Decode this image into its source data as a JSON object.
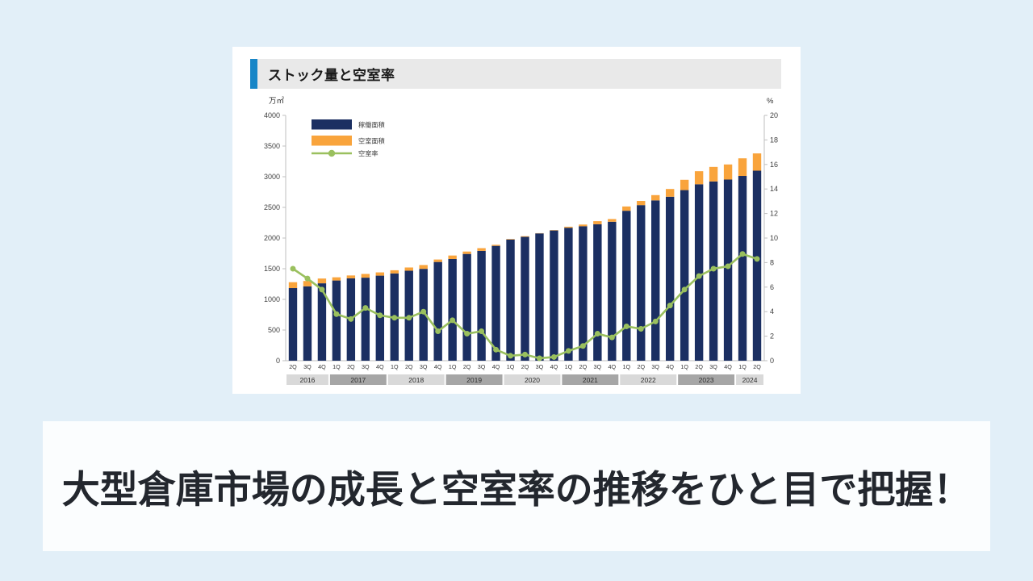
{
  "page": {
    "caption": "大型倉庫市場の成長と空室率の推移をひと目で把握！"
  },
  "card": {
    "title": "ストック量と空室率"
  },
  "colors": {
    "page_bg": "#e2eff8",
    "card_bg": "#ffffff",
    "header_strip": "#e9e9e9",
    "accent_blue": "#1886c7",
    "caption_band_bg": "#fbfdfe",
    "caption_text": "#23272e",
    "bar_operating": "#1b2f62",
    "bar_vacant": "#f9a43c",
    "line_vacancy": "#9ac05e",
    "axis": "#bfbfbf",
    "tick_text": "#3f3f3f",
    "year_band_light": "#d9d9d9",
    "year_band_dark": "#a6a6a6",
    "year_text": "#2e2e2e"
  },
  "chart_data": {
    "type": "bar",
    "subtype": "stacked-bar-with-line",
    "title": "ストック量と空室率",
    "left_axis": {
      "unit": "万㎡",
      "min": 0,
      "max": 4000,
      "ticks": [
        0,
        500,
        1000,
        1500,
        2000,
        2500,
        3000,
        3500,
        4000
      ]
    },
    "right_axis": {
      "unit": "%",
      "min": 0,
      "max": 20,
      "ticks": [
        0,
        2,
        4,
        6,
        8,
        10,
        12,
        14,
        16,
        18,
        20
      ]
    },
    "legend": [
      {
        "label": "稼働面積",
        "type": "bar",
        "color": "#1b2f62"
      },
      {
        "label": "空室面積",
        "type": "bar",
        "color": "#f9a43c"
      },
      {
        "label": "空室率",
        "type": "line",
        "color": "#9ac05e"
      }
    ],
    "quarter_labels": [
      "2Q",
      "3Q",
      "4Q",
      "1Q",
      "2Q",
      "3Q",
      "4Q",
      "1Q",
      "2Q",
      "3Q",
      "4Q",
      "1Q",
      "2Q",
      "3Q",
      "4Q",
      "1Q",
      "2Q",
      "3Q",
      "4Q",
      "1Q",
      "2Q",
      "3Q",
      "4Q",
      "1Q",
      "2Q",
      "3Q",
      "4Q",
      "1Q",
      "2Q",
      "3Q",
      "4Q",
      "1Q",
      "2Q"
    ],
    "year_bands": [
      {
        "year": "2016",
        "count": 3,
        "shade": "light"
      },
      {
        "year": "2017",
        "count": 4,
        "shade": "dark"
      },
      {
        "year": "2018",
        "count": 4,
        "shade": "light"
      },
      {
        "year": "2019",
        "count": 4,
        "shade": "dark"
      },
      {
        "year": "2020",
        "count": 4,
        "shade": "light"
      },
      {
        "year": "2021",
        "count": 4,
        "shade": "dark"
      },
      {
        "year": "2022",
        "count": 4,
        "shade": "light"
      },
      {
        "year": "2023",
        "count": 4,
        "shade": "dark"
      },
      {
        "year": "2024",
        "count": 2,
        "shade": "light"
      }
    ],
    "series": [
      {
        "name": "稼働面積",
        "axis": "left",
        "values": [
          1184,
          1213,
          1262,
          1308,
          1343,
          1354,
          1387,
          1423,
          1467,
          1498,
          1610,
          1658,
          1741,
          1791,
          1873,
          1977,
          2020,
          2076,
          2124,
          2168,
          2193,
          2225,
          2266,
          2445,
          2537,
          2614,
          2674,
          2782,
          2877,
          2923,
          2954,
          3013,
          3099
        ]
      },
      {
        "name": "空室面積",
        "axis": "left",
        "values": [
          96,
          87,
          78,
          52,
          47,
          61,
          53,
          52,
          53,
          62,
          40,
          57,
          39,
          44,
          17,
          8,
          10,
          4,
          6,
          17,
          27,
          50,
          44,
          70,
          68,
          86,
          126,
          168,
          213,
          237,
          246,
          287,
          281
        ]
      },
      {
        "name": "空室率",
        "axis": "right",
        "values": [
          7.5,
          6.7,
          5.8,
          3.8,
          3.4,
          4.3,
          3.7,
          3.5,
          3.5,
          4.0,
          2.4,
          3.3,
          2.2,
          2.4,
          0.9,
          0.4,
          0.5,
          0.2,
          0.3,
          0.8,
          1.2,
          2.2,
          1.9,
          2.8,
          2.6,
          3.2,
          4.5,
          5.8,
          6.9,
          7.5,
          7.7,
          8.7,
          8.3
        ]
      }
    ]
  }
}
